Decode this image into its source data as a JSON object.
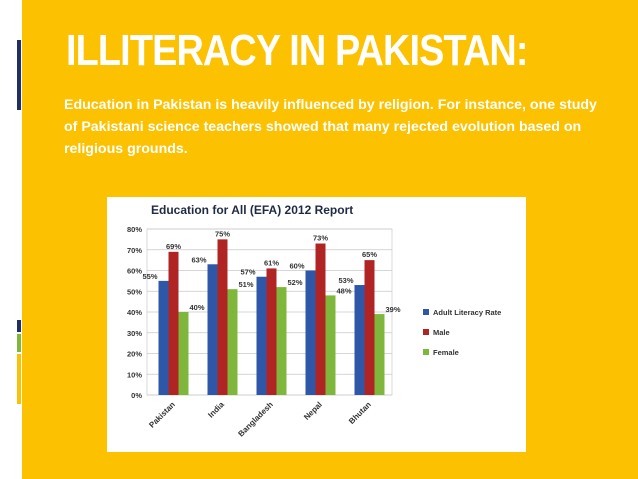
{
  "slide": {
    "title": "ILLITERACY IN PAKISTAN:",
    "body": "Education in Pakistan is heavily influenced by religion. For instance, one study of Pakistani science teachers showed that many rejected evolution based on religious grounds."
  },
  "colors": {
    "background": "#fcc100",
    "adult": "#2f57a8",
    "male": "#b02424",
    "female": "#7fb73c",
    "accent": "#1f2f66"
  },
  "chart_data": {
    "type": "bar",
    "title": "Education for All (EFA) 2012 Report",
    "categories": [
      "Pakistan",
      "India",
      "Bangladesh",
      "Nepal",
      "Bhutan"
    ],
    "series": [
      {
        "name": "Adult Literacy Rate",
        "values": [
          55,
          63,
          57,
          60,
          53
        ],
        "labels": [
          "55%",
          "63%",
          "57%",
          "60%",
          "53%"
        ]
      },
      {
        "name": "Male",
        "values": [
          69,
          75,
          61,
          73,
          65
        ],
        "labels": [
          "69%",
          "75%",
          "61%",
          "73%",
          "65%"
        ]
      },
      {
        "name": "Female",
        "values": [
          40,
          51,
          52,
          48,
          39
        ],
        "labels": [
          "40%",
          "51%",
          "52%",
          "48%",
          "39%"
        ]
      }
    ],
    "ylim": [
      0,
      80
    ],
    "yticks": [
      "0%",
      "10%",
      "20%",
      "30%",
      "40%",
      "50%",
      "60%",
      "70%",
      "80%"
    ],
    "grid": true,
    "legend": "right"
  }
}
